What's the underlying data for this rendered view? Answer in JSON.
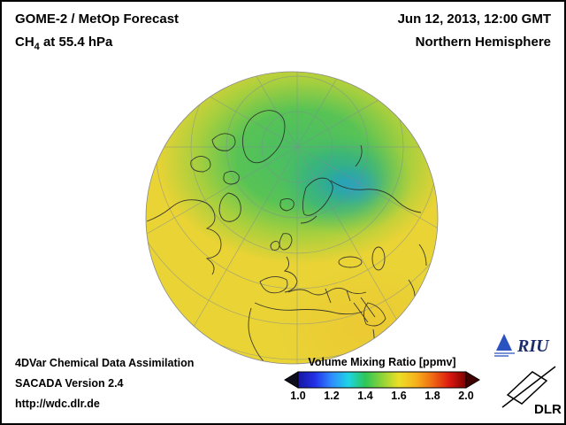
{
  "header": {
    "title": "GOME-2 / MetOp Forecast",
    "species": "CH",
    "species_sub": "4",
    "level_suffix": "at 55.4 hPa",
    "datetime": "Jun 12, 2013, 12:00 GMT",
    "region": "Northern Hemisphere"
  },
  "footer": {
    "line1": "4DVar Chemical Data Assimilation",
    "line2": "SACADA Version 2.4",
    "url": "http://wdc.dlr.de"
  },
  "colorbar": {
    "title": "Volume Mixing Ratio [ppmv]",
    "min": 1.0,
    "max": 2.0,
    "ticks": [
      "1.0",
      "1.2",
      "1.4",
      "1.6",
      "1.8",
      "2.0"
    ],
    "colors": [
      "#16169e",
      "#2330e8",
      "#2f8cff",
      "#1ed4e4",
      "#2cc657",
      "#8ed339",
      "#ecdf26",
      "#f6b31c",
      "#f06a12",
      "#dc1a10",
      "#7e0000"
    ],
    "arrow_left_color": "#0e0e1c",
    "arrow_right_color": "#400000"
  },
  "globe": {
    "base_color": "#e9d335",
    "anomaly_green": "#4fbf5e",
    "anomaly_teal": "#27a9a4",
    "anomaly_blue": "#2f9fc4"
  },
  "logos": {
    "riu_text": "RIU",
    "dlr_text": "DLR"
  }
}
